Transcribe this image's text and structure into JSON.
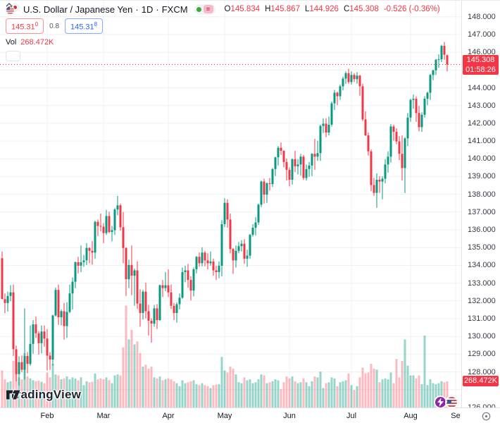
{
  "legend": {
    "title": "U.S. Dollar / Japanese Yen",
    "separator": "·",
    "interval": "1D",
    "exchange": "FXCM",
    "ohlc": {
      "open_label": "O",
      "open": "145.834",
      "high_label": "H",
      "high": "145.867",
      "low_label": "L",
      "low": "144.926",
      "close_label": "C",
      "close": "145.308",
      "change": "-0.526 (-0.36%)"
    },
    "bid": "145.31",
    "bid_sup": "0",
    "spread": "0.8",
    "ask": "145.31",
    "ask_sup": "8",
    "volume_label": "Vol",
    "volume_value": "268.472K"
  },
  "price_scale": {
    "labels": [
      "148.000",
      "147.000",
      "146.000",
      "145.000",
      "144.000",
      "143.000",
      "142.000",
      "141.000",
      "140.000",
      "139.000",
      "138.000",
      "137.000",
      "136.000",
      "135.000",
      "134.000",
      "133.000",
      "132.000",
      "131.000",
      "130.000",
      "129.000",
      "128.000",
      "126.000"
    ],
    "last_price_label": "145.308",
    "countdown": "01:58:26",
    "last_volume_label": "268.472K"
  },
  "time_scale": {
    "months": [
      {
        "label": "Feb",
        "index": 16
      },
      {
        "label": "Mar",
        "index": 36
      },
      {
        "label": "Apr",
        "index": 59
      },
      {
        "label": "May",
        "index": 79
      },
      {
        "label": "Jun",
        "index": 102
      },
      {
        "label": "Jul",
        "index": 124
      },
      {
        "label": "Aug",
        "index": 145
      },
      {
        "label": "Se",
        "index": 161
      }
    ]
  },
  "branding": {
    "logo_text": "TradingView"
  },
  "colors": {
    "up": "#089981",
    "down": "#F23645",
    "vol_up": "rgba(8,153,129,0.42)",
    "vol_down": "rgba(242,54,69,0.34)",
    "accent_red": "#F23645",
    "accent_blue": "#2962FF",
    "status_green": "#3cab3c",
    "eq_chip_bg": "#f7b9c6",
    "eq_chip_fg": "#c2врat"
  },
  "chart_data": {
    "type": "candlestick",
    "title": "U.S. Dollar / Japanese Yen",
    "interval": "1D",
    "exchange": "FXCM",
    "ylim": [
      126.0,
      148.9
    ],
    "price_gridline_step": 1.0,
    "grid": true,
    "legend_position": "top-left",
    "last_price": 145.308,
    "last_volume_k": 268.472,
    "columns": [
      "date_2023",
      "open",
      "high",
      "low",
      "close",
      "volume_k"
    ],
    "candles": [
      [
        "01-06",
        134.4,
        134.78,
        132.55,
        132.1,
        380
      ],
      [
        "01-09",
        132.1,
        132.42,
        131.31,
        131.88,
        290
      ],
      [
        "01-10",
        131.88,
        132.52,
        131.4,
        132.28,
        260
      ],
      [
        "01-11",
        132.28,
        132.88,
        131.98,
        132.48,
        270
      ],
      [
        "01-12",
        132.48,
        132.92,
        128.9,
        129.28,
        480
      ],
      [
        "01-13",
        129.28,
        129.48,
        127.46,
        127.88,
        420
      ],
      [
        "01-16",
        127.88,
        128.88,
        127.23,
        128.55,
        310
      ],
      [
        "01-17",
        128.55,
        128.92,
        127.98,
        128.12,
        290
      ],
      [
        "01-18",
        128.12,
        131.58,
        127.57,
        128.9,
        560
      ],
      [
        "01-19",
        128.9,
        129.12,
        127.92,
        128.45,
        320
      ],
      [
        "01-20",
        128.45,
        130.62,
        128.35,
        129.58,
        300
      ],
      [
        "01-23",
        129.58,
        130.92,
        129.02,
        130.68,
        280
      ],
      [
        "01-24",
        130.68,
        131.12,
        129.92,
        130.18,
        270
      ],
      [
        "01-25",
        130.18,
        130.3,
        128.98,
        129.62,
        275
      ],
      [
        "01-26",
        129.62,
        130.62,
        129.05,
        130.28,
        265
      ],
      [
        "01-27",
        130.28,
        130.62,
        129.42,
        129.88,
        250
      ],
      [
        "02-01",
        129.88,
        130.42,
        128.08,
        128.92,
        360
      ],
      [
        "02-02",
        128.92,
        129.12,
        128.12,
        128.7,
        310
      ],
      [
        "02-03",
        128.7,
        131.22,
        128.35,
        131.18,
        450
      ],
      [
        "02-06",
        131.18,
        132.75,
        131.12,
        132.62,
        340
      ],
      [
        "02-07",
        132.62,
        132.92,
        130.65,
        131.08,
        330
      ],
      [
        "02-08",
        131.08,
        131.52,
        130.62,
        131.42,
        290
      ],
      [
        "02-09",
        131.42,
        131.88,
        129.82,
        130.58,
        300
      ],
      [
        "02-10",
        130.58,
        131.92,
        129.92,
        131.38,
        320
      ],
      [
        "02-13",
        131.38,
        132.92,
        131.32,
        132.42,
        290
      ],
      [
        "02-14",
        132.42,
        133.32,
        131.52,
        133.08,
        310
      ],
      [
        "02-15",
        133.08,
        134.22,
        132.72,
        134.18,
        300
      ],
      [
        "02-16",
        134.18,
        134.48,
        133.55,
        133.98,
        280
      ],
      [
        "02-17",
        133.98,
        135.12,
        133.62,
        134.18,
        310
      ],
      [
        "02-20",
        134.18,
        134.58,
        133.92,
        134.28,
        230
      ],
      [
        "02-21",
        134.28,
        135.25,
        134.02,
        134.98,
        270
      ],
      [
        "02-22",
        134.98,
        135.02,
        134.12,
        134.82,
        260
      ],
      [
        "02-23",
        134.82,
        135.38,
        134.05,
        134.72,
        265
      ],
      [
        "02-24",
        134.72,
        136.52,
        134.38,
        136.45,
        350
      ],
      [
        "02-27",
        136.45,
        136.58,
        135.65,
        136.22,
        290
      ],
      [
        "02-28",
        136.22,
        136.92,
        135.92,
        136.18,
        300
      ],
      [
        "03-01",
        136.18,
        136.38,
        135.25,
        135.82,
        290
      ],
      [
        "03-02",
        135.82,
        137.12,
        135.72,
        136.78,
        310
      ],
      [
        "03-03",
        136.78,
        137.02,
        135.82,
        135.88,
        280
      ],
      [
        "03-06",
        135.88,
        136.22,
        135.35,
        135.98,
        250
      ],
      [
        "03-07",
        135.98,
        137.22,
        135.72,
        137.15,
        330
      ],
      [
        "03-08",
        137.15,
        137.92,
        136.82,
        137.38,
        340
      ],
      [
        "03-09",
        137.38,
        137.48,
        135.95,
        136.15,
        330
      ],
      [
        "03-10",
        136.15,
        137.0,
        134.12,
        134.98,
        620
      ],
      [
        "03-13",
        134.98,
        135.02,
        132.28,
        133.22,
        1050
      ],
      [
        "03-14",
        133.22,
        134.32,
        132.72,
        134.02,
        700
      ],
      [
        "03-15",
        134.02,
        135.12,
        132.32,
        133.42,
        800
      ],
      [
        "03-16",
        133.42,
        133.82,
        131.72,
        133.72,
        650
      ],
      [
        "03-17",
        133.72,
        134.22,
        131.55,
        131.85,
        680
      ],
      [
        "03-20",
        131.85,
        132.65,
        130.55,
        131.32,
        560
      ],
      [
        "03-21",
        131.32,
        132.62,
        130.95,
        132.52,
        420
      ],
      [
        "03-22",
        132.52,
        133.02,
        131.02,
        131.42,
        440
      ],
      [
        "03-23",
        131.42,
        131.78,
        130.05,
        130.88,
        400
      ],
      [
        "03-24",
        130.88,
        131.02,
        129.65,
        130.72,
        420
      ],
      [
        "03-27",
        130.72,
        131.78,
        130.55,
        131.58,
        310
      ],
      [
        "03-28",
        131.58,
        131.82,
        130.42,
        130.92,
        300
      ],
      [
        "03-29",
        130.92,
        132.92,
        130.88,
        132.88,
        320
      ],
      [
        "03-30",
        132.88,
        133.18,
        132.22,
        132.72,
        280
      ],
      [
        "03-31",
        132.72,
        133.62,
        132.55,
        132.88,
        290
      ],
      [
        "04-03",
        132.88,
        133.78,
        132.22,
        132.48,
        300
      ],
      [
        "04-04",
        132.48,
        132.92,
        131.55,
        131.72,
        290
      ],
      [
        "04-05",
        131.72,
        131.88,
        130.92,
        131.32,
        270
      ],
      [
        "04-06",
        131.32,
        131.92,
        130.78,
        131.82,
        250
      ],
      [
        "04-07",
        131.82,
        132.42,
        131.52,
        132.18,
        220
      ],
      [
        "04-10",
        132.18,
        133.88,
        132.12,
        133.62,
        280
      ],
      [
        "04-11",
        133.62,
        133.98,
        133.05,
        133.72,
        250
      ],
      [
        "04-12",
        133.72,
        134.08,
        132.75,
        133.18,
        260
      ],
      [
        "04-13",
        133.18,
        133.38,
        132.02,
        132.58,
        270
      ],
      [
        "04-14",
        132.58,
        133.88,
        132.25,
        133.78,
        280
      ],
      [
        "04-17",
        133.78,
        134.52,
        133.55,
        134.48,
        240
      ],
      [
        "04-18",
        134.48,
        134.72,
        133.92,
        134.12,
        230
      ],
      [
        "04-19",
        134.12,
        135.02,
        133.95,
        134.72,
        250
      ],
      [
        "04-20",
        134.72,
        134.82,
        133.95,
        134.28,
        230
      ],
      [
        "04-21",
        134.28,
        134.68,
        133.78,
        134.12,
        220
      ],
      [
        "04-24",
        134.12,
        134.78,
        133.98,
        134.22,
        200
      ],
      [
        "04-25",
        134.22,
        134.38,
        133.42,
        133.72,
        230
      ],
      [
        "04-26",
        133.72,
        133.98,
        133.18,
        133.62,
        235
      ],
      [
        "04-27",
        133.62,
        134.22,
        133.28,
        133.98,
        240
      ],
      [
        "04-28",
        133.98,
        136.55,
        133.38,
        136.32,
        520
      ],
      [
        "05-01",
        136.32,
        137.78,
        136.15,
        137.52,
        380
      ],
      [
        "05-02",
        137.52,
        137.72,
        136.12,
        136.58,
        360
      ],
      [
        "05-03",
        136.58,
        136.92,
        134.68,
        134.92,
        420
      ],
      [
        "05-04",
        134.92,
        134.98,
        133.52,
        134.28,
        400
      ],
      [
        "05-05",
        134.28,
        135.12,
        133.88,
        134.82,
        340
      ],
      [
        "05-08",
        134.82,
        135.32,
        134.68,
        135.08,
        260
      ],
      [
        "05-09",
        135.08,
        135.42,
        134.78,
        135.22,
        250
      ],
      [
        "05-10",
        135.22,
        135.48,
        134.08,
        134.38,
        310
      ],
      [
        "05-11",
        134.38,
        134.88,
        133.92,
        134.55,
        280
      ],
      [
        "05-12",
        134.55,
        135.78,
        134.38,
        135.72,
        290
      ],
      [
        "05-15",
        135.72,
        136.32,
        135.62,
        136.12,
        250
      ],
      [
        "05-16",
        136.12,
        136.72,
        135.68,
        136.42,
        260
      ],
      [
        "05-17",
        136.42,
        137.48,
        136.28,
        137.42,
        290
      ],
      [
        "05-18",
        137.42,
        138.78,
        137.28,
        138.72,
        340
      ],
      [
        "05-19",
        138.72,
        138.88,
        137.48,
        137.98,
        330
      ],
      [
        "05-22",
        137.98,
        138.68,
        137.52,
        138.62,
        250
      ],
      [
        "05-23",
        138.62,
        138.92,
        138.22,
        138.58,
        260
      ],
      [
        "05-24",
        138.58,
        139.48,
        138.42,
        139.42,
        270
      ],
      [
        "05-25",
        139.42,
        140.12,
        139.02,
        140.08,
        290
      ],
      [
        "05-26",
        140.08,
        140.72,
        139.62,
        140.62,
        280
      ],
      [
        "05-29",
        140.62,
        140.92,
        140.22,
        140.45,
        190
      ],
      [
        "05-30",
        140.45,
        140.48,
        139.52,
        139.82,
        260
      ],
      [
        "05-31",
        139.82,
        140.02,
        138.78,
        139.38,
        320
      ],
      [
        "06-01",
        139.38,
        139.52,
        138.45,
        138.82,
        300
      ],
      [
        "06-02",
        138.82,
        140.02,
        138.55,
        139.98,
        320
      ],
      [
        "06-05",
        139.98,
        140.45,
        139.25,
        139.58,
        270
      ],
      [
        "06-06",
        139.58,
        139.98,
        139.12,
        139.68,
        250
      ],
      [
        "06-07",
        139.68,
        140.28,
        139.05,
        140.12,
        260
      ],
      [
        "06-08",
        140.12,
        140.22,
        138.82,
        138.92,
        300
      ],
      [
        "06-09",
        138.92,
        139.68,
        138.78,
        139.42,
        260
      ],
      [
        "06-12",
        139.42,
        139.82,
        138.98,
        139.62,
        220
      ],
      [
        "06-13",
        139.62,
        140.32,
        139.02,
        140.28,
        270
      ],
      [
        "06-14",
        140.28,
        141.12,
        139.38,
        140.12,
        320
      ],
      [
        "06-15",
        140.12,
        141.02,
        139.88,
        140.32,
        310
      ],
      [
        "06-16",
        140.32,
        141.92,
        139.88,
        141.85,
        370
      ],
      [
        "06-19",
        141.85,
        142.28,
        141.45,
        141.98,
        200
      ],
      [
        "06-20",
        141.98,
        142.28,
        141.22,
        141.48,
        250
      ],
      [
        "06-21",
        141.48,
        142.38,
        141.32,
        141.92,
        260
      ],
      [
        "06-22",
        141.92,
        143.22,
        141.82,
        143.12,
        310
      ],
      [
        "06-23",
        143.12,
        143.88,
        142.75,
        143.72,
        300
      ],
      [
        "06-26",
        143.72,
        143.78,
        143.02,
        143.52,
        220
      ],
      [
        "06-27",
        143.52,
        144.18,
        143.32,
        144.08,
        260
      ],
      [
        "06-28",
        144.08,
        144.62,
        143.85,
        144.52,
        270
      ],
      [
        "06-29",
        144.52,
        144.92,
        144.22,
        144.82,
        280
      ],
      [
        "06-30",
        144.82,
        145.07,
        144.22,
        144.32,
        350
      ],
      [
        "07-03",
        144.32,
        144.92,
        144.18,
        144.72,
        230
      ],
      [
        "07-04",
        144.72,
        144.82,
        144.32,
        144.48,
        180
      ],
      [
        "07-05",
        144.48,
        144.88,
        144.22,
        144.68,
        220
      ],
      [
        "07-06",
        144.68,
        144.72,
        143.55,
        144.08,
        310
      ],
      [
        "07-07",
        144.08,
        144.22,
        142.12,
        142.22,
        410
      ],
      [
        "07-10",
        142.22,
        142.68,
        141.28,
        141.32,
        350
      ],
      [
        "07-11",
        141.32,
        141.48,
        140.18,
        140.42,
        360
      ],
      [
        "07-12",
        140.42,
        140.52,
        138.18,
        138.52,
        450
      ],
      [
        "07-13",
        138.52,
        138.92,
        137.92,
        138.08,
        400
      ],
      [
        "07-14",
        138.08,
        139.18,
        137.24,
        138.82,
        390
      ],
      [
        "07-17",
        138.82,
        139.02,
        138.08,
        138.72,
        260
      ],
      [
        "07-18",
        138.72,
        139.02,
        137.72,
        138.88,
        290
      ],
      [
        "07-19",
        138.88,
        139.98,
        138.62,
        139.68,
        300
      ],
      [
        "07-20",
        139.68,
        140.42,
        139.22,
        140.12,
        290
      ],
      [
        "07-21",
        140.12,
        141.95,
        139.78,
        141.82,
        360
      ],
      [
        "07-24",
        141.82,
        141.92,
        141.02,
        141.52,
        250
      ],
      [
        "07-25",
        141.52,
        141.72,
        140.82,
        140.98,
        500
      ],
      [
        "07-26",
        140.98,
        141.28,
        139.92,
        140.28,
        310
      ],
      [
        "07-27",
        140.28,
        141.32,
        138.78,
        139.48,
        480
      ],
      [
        "07-28",
        139.48,
        141.22,
        138.07,
        141.15,
        700
      ],
      [
        "07-31",
        141.15,
        142.58,
        140.72,
        142.32,
        430
      ],
      [
        "08-01",
        142.32,
        143.38,
        142.08,
        143.32,
        330
      ],
      [
        "08-02",
        143.32,
        143.62,
        142.82,
        143.38,
        330
      ],
      [
        "08-03",
        143.38,
        143.52,
        142.08,
        142.58,
        300
      ],
      [
        "08-04",
        142.58,
        142.98,
        141.55,
        141.78,
        330
      ],
      [
        "08-07",
        141.78,
        142.62,
        141.52,
        142.48,
        240
      ],
      [
        "08-08",
        142.48,
        143.52,
        142.32,
        143.38,
        740
      ],
      [
        "08-09",
        143.38,
        143.78,
        143.02,
        143.72,
        230
      ],
      [
        "08-10",
        143.72,
        144.78,
        143.32,
        144.72,
        290
      ],
      [
        "08-11",
        144.72,
        145.02,
        144.42,
        144.98,
        250
      ],
      [
        "08-14",
        144.98,
        145.62,
        144.72,
        145.58,
        240
      ],
      [
        "08-15",
        145.58,
        145.88,
        145.12,
        145.6,
        250
      ],
      [
        "08-16",
        145.6,
        146.42,
        145.45,
        146.36,
        270
      ],
      [
        "08-17",
        146.36,
        146.58,
        145.58,
        145.86,
        260
      ],
      [
        "08-18",
        145.834,
        145.867,
        144.926,
        145.308,
        268.472
      ]
    ]
  }
}
